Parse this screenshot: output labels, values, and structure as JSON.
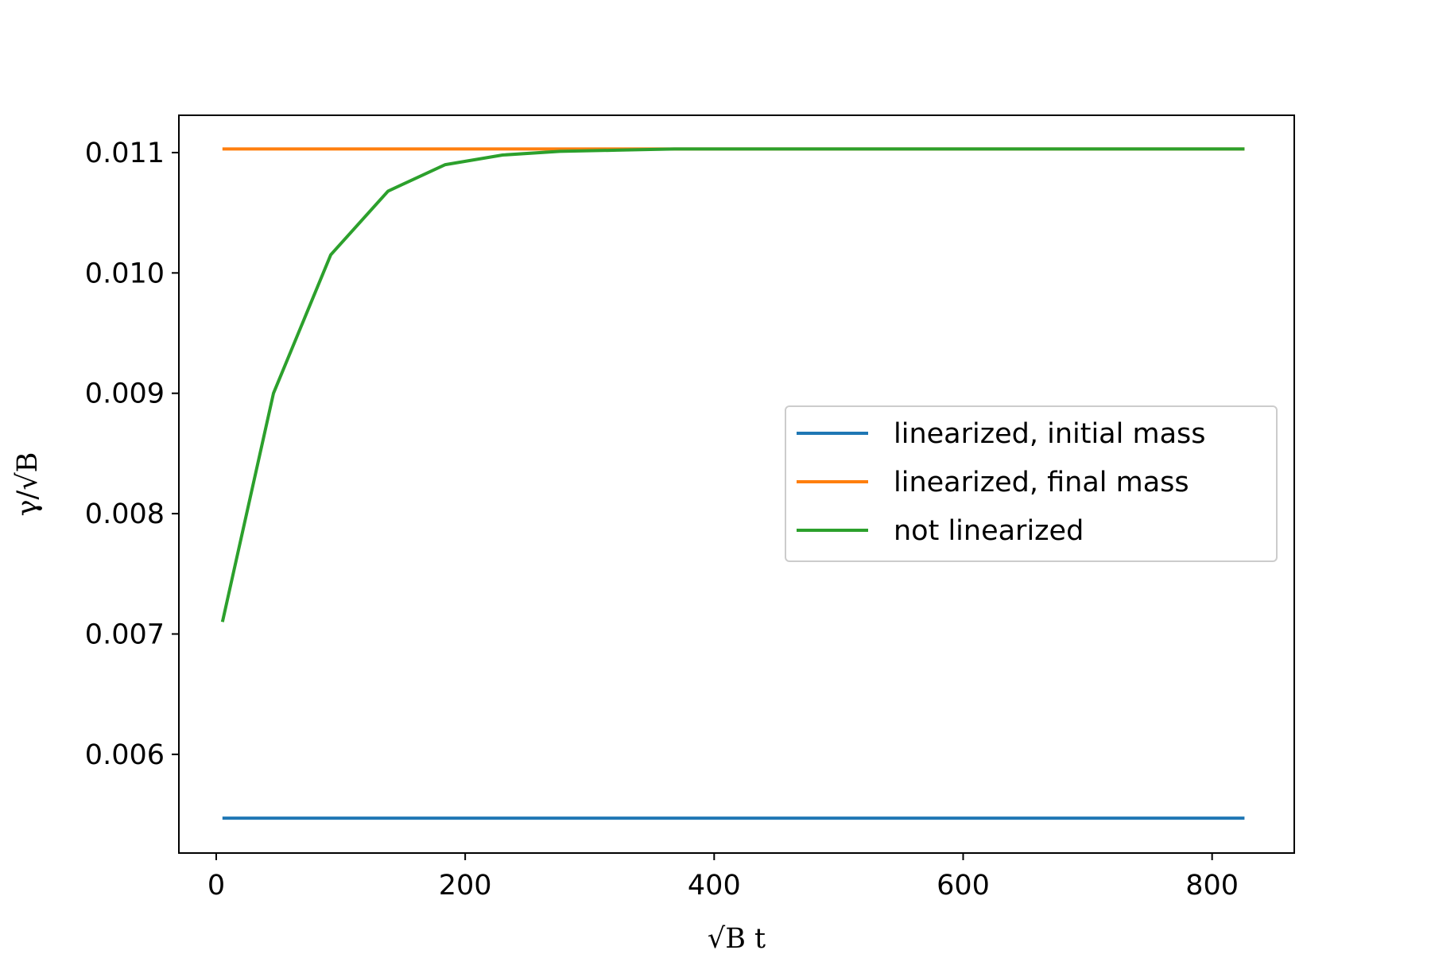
{
  "chart_data": {
    "type": "line",
    "title": "",
    "xlabel": "√B t",
    "ylabel": "γ/√B",
    "xlim": [
      -30,
      866
    ],
    "ylim": [
      0.00518,
      0.01131
    ],
    "xticks": [
      0,
      200,
      400,
      600,
      800
    ],
    "yticks": [
      0.006,
      0.007,
      0.008,
      0.009,
      0.01,
      0.011
    ],
    "xtick_labels": [
      "0",
      "200",
      "400",
      "600",
      "800"
    ],
    "ytick_labels": [
      "0.006",
      "0.007",
      "0.008",
      "0.009",
      "0.010",
      "0.011"
    ],
    "grid": false,
    "legend_position": "center-right",
    "series": [
      {
        "name": "linearized, initial mass",
        "color": "#1f77b4",
        "x": [
          5,
          826
        ],
        "y": [
          0.00547,
          0.00547
        ]
      },
      {
        "name": "linearized, final mass",
        "color": "#ff7f0e",
        "x": [
          5,
          826
        ],
        "y": [
          0.01103,
          0.01103
        ]
      },
      {
        "name": "not linearized",
        "color": "#2ca02c",
        "x": [
          5,
          46,
          92,
          138,
          184,
          230,
          276,
          322,
          368,
          414,
          460,
          506,
          552,
          598,
          644,
          690,
          736,
          782,
          826
        ],
        "y": [
          0.0071,
          0.009,
          0.01015,
          0.01068,
          0.0109,
          0.01098,
          0.01101,
          0.01102,
          0.01103,
          0.01103,
          0.01103,
          0.01103,
          0.01103,
          0.01103,
          0.01103,
          0.01103,
          0.01103,
          0.01103,
          0.01103
        ]
      }
    ]
  }
}
